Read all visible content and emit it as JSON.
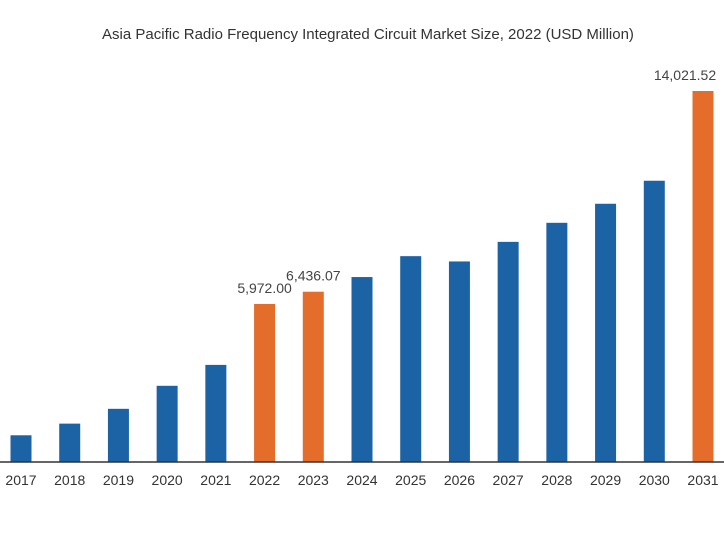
{
  "chart_data": {
    "type": "bar",
    "title": "Asia Pacific Radio Frequency Integrated Circuit Market Size, 2022 (USD Million)",
    "xlabel": "",
    "ylabel": "",
    "categories": [
      "2017",
      "2018",
      "2019",
      "2020",
      "2021",
      "2022",
      "2023",
      "2024",
      "2025",
      "2026",
      "2027",
      "2028",
      "2029",
      "2030",
      "2031"
    ],
    "values": [
      1010,
      1450,
      2010,
      2880,
      3670,
      5972.0,
      6436.07,
      6990,
      7780,
      7580,
      8320,
      9040,
      9760,
      10630,
      14021.52
    ],
    "value_labels": [
      "",
      "",
      "",
      "",
      "",
      "5,972.00",
      "6,436.07",
      "",
      "",
      "",
      "",
      "",
      "",
      "",
      "14,021.52"
    ],
    "highlight": [
      false,
      false,
      false,
      false,
      false,
      true,
      true,
      false,
      false,
      false,
      false,
      false,
      false,
      false,
      true
    ],
    "ylim": [
      0,
      14021.52
    ],
    "grid": false,
    "legend": "none",
    "colors": {
      "primary": "#1c63a6",
      "highlight": "#e56d2b",
      "axis": "#333333"
    }
  }
}
